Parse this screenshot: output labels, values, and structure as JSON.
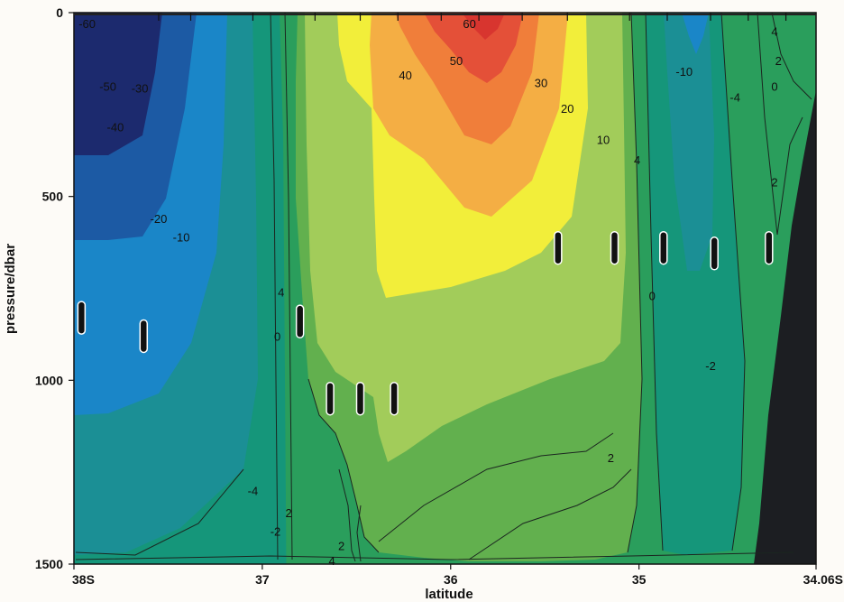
{
  "chart_data": {
    "type": "heatmap",
    "xlabel": "latitude",
    "ylabel": "pressure/dbar",
    "x_ticks": [
      "38S",
      "37",
      "36",
      "35",
      "34.06S"
    ],
    "y_ticks": [
      "0",
      "500",
      "1000",
      "1500"
    ],
    "x_range": [
      "38S",
      "34.06S"
    ],
    "ylim": [
      0,
      1500
    ],
    "y_inverted": true,
    "grid": false,
    "colors": {
      "lt_-40": "#1c2a6e",
      "-40_-20": "#1c5aa4",
      "-20_-10": "#1a86c8",
      "-10_-4": "#1b8f95",
      "-4_-2": "#15967a",
      "-2_2": "#2a9e5c",
      "2_10": "#62b04e",
      "10_20": "#a2cc5a",
      "20_30": "#f2ee3a",
      "30_40": "#f4ae44",
      "40_50": "#f07e3a",
      "50_60": "#e45038",
      "gt_60": "#d8352f",
      "bottom": "#1c1e22"
    },
    "contour_labels": [
      {
        "lat": 37.93,
        "p": 30,
        "value": "-60"
      },
      {
        "lat": 37.82,
        "p": 200,
        "value": "-50"
      },
      {
        "lat": 37.65,
        "p": 205,
        "value": "-30"
      },
      {
        "lat": 37.78,
        "p": 310,
        "value": "-40"
      },
      {
        "lat": 37.55,
        "p": 560,
        "value": "-20"
      },
      {
        "lat": 37.43,
        "p": 610,
        "value": "-10"
      },
      {
        "lat": 37.05,
        "p": 1300,
        "value": "-4"
      },
      {
        "lat": 36.93,
        "p": 1410,
        "value": "-2"
      },
      {
        "lat": 36.92,
        "p": 880,
        "value": "0"
      },
      {
        "lat": 36.9,
        "p": 760,
        "value": "4"
      },
      {
        "lat": 36.86,
        "p": 1360,
        "value": "2"
      },
      {
        "lat": 36.58,
        "p": 1450,
        "value": "2"
      },
      {
        "lat": 36.63,
        "p": 1490,
        "value": "4"
      },
      {
        "lat": 35.9,
        "p": 30,
        "value": "60"
      },
      {
        "lat": 35.97,
        "p": 130,
        "value": "50"
      },
      {
        "lat": 36.24,
        "p": 170,
        "value": "40"
      },
      {
        "lat": 35.52,
        "p": 190,
        "value": "30"
      },
      {
        "lat": 35.38,
        "p": 260,
        "value": "20"
      },
      {
        "lat": 35.19,
        "p": 345,
        "value": "10"
      },
      {
        "lat": 35.01,
        "p": 400,
        "value": "4"
      },
      {
        "lat": 34.93,
        "p": 770,
        "value": "0"
      },
      {
        "lat": 34.76,
        "p": 160,
        "value": "-10"
      },
      {
        "lat": 34.49,
        "p": 230,
        "value": "-4"
      },
      {
        "lat": 34.62,
        "p": 960,
        "value": "-2"
      },
      {
        "lat": 35.15,
        "p": 1210,
        "value": "2"
      },
      {
        "lat": 34.28,
        "p": 50,
        "value": "4"
      },
      {
        "lat": 34.26,
        "p": 130,
        "value": "2"
      },
      {
        "lat": 34.28,
        "p": 200,
        "value": "0"
      },
      {
        "lat": 34.28,
        "p": 460,
        "value": "2"
      }
    ],
    "float_markers": [
      {
        "lat": 37.96,
        "p": 830
      },
      {
        "lat": 37.63,
        "p": 880
      },
      {
        "lat": 36.8,
        "p": 840
      },
      {
        "lat": 36.64,
        "p": 1050
      },
      {
        "lat": 36.48,
        "p": 1050
      },
      {
        "lat": 36.3,
        "p": 1050
      },
      {
        "lat": 35.43,
        "p": 640
      },
      {
        "lat": 35.13,
        "p": 640
      },
      {
        "lat": 34.87,
        "p": 640
      },
      {
        "lat": 34.6,
        "p": 655
      },
      {
        "lat": 34.31,
        "p": 640
      }
    ]
  }
}
